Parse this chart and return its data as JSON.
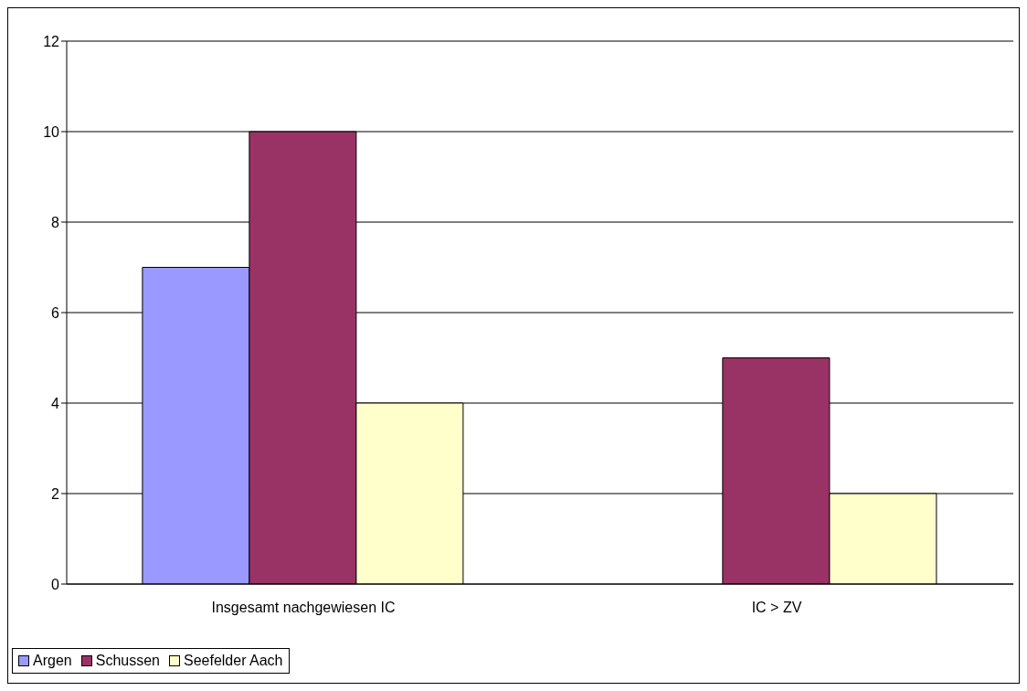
{
  "chart_data": {
    "type": "bar",
    "categories": [
      "Insgesamt nachgewiesen IC",
      "IC > ZV"
    ],
    "series": [
      {
        "name": "Argen",
        "color": "#9999ff",
        "values": [
          7,
          0
        ]
      },
      {
        "name": "Schussen",
        "color": "#993366",
        "values": [
          10,
          5
        ]
      },
      {
        "name": "Seefelder Aach",
        "color": "#ffffcc",
        "values": [
          4,
          2
        ]
      }
    ],
    "ylim": [
      0,
      12
    ],
    "yticks": [
      0,
      2,
      4,
      6,
      8,
      10,
      12
    ],
    "grid": "y",
    "legend": "bottom"
  }
}
